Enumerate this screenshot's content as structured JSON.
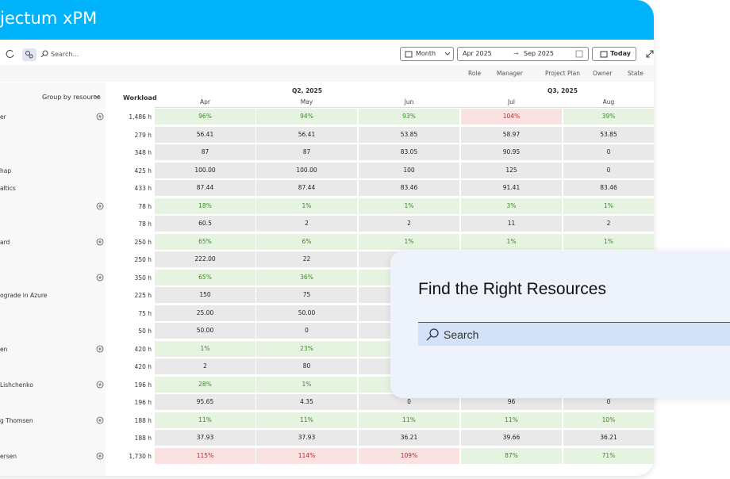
{
  "header": {
    "title": "jectum xPM"
  },
  "toolbar": {
    "search": "Search...",
    "period": "Month",
    "date_from": "Apr 2025",
    "date_arrow": "→",
    "date_to": "Sep 2025",
    "today": "Today"
  },
  "filters": [
    "Role",
    "Manager",
    "Project Plan",
    "Owner",
    "State"
  ],
  "grid": {
    "group_by": "Group by resource",
    "workload": "Workload",
    "quarters": [
      "Q2, 2025",
      "Q3, 2025"
    ],
    "months": [
      "Apr",
      "May",
      "Jun",
      "Jul",
      "Aug"
    ],
    "rows": [
      {
        "name": "er",
        "expandable": true,
        "workload": "1,486 h",
        "cells": [
          "96%",
          "94%",
          "93%",
          "104%",
          "39%"
        ]
      },
      {
        "workload": "279 h",
        "cells": [
          "56.41",
          "56.41",
          "53.85",
          "58.97",
          "53.85"
        ]
      },
      {
        "workload": "348 h",
        "cells": [
          "87",
          "87",
          "83.05",
          "90.95",
          "0"
        ]
      },
      {
        "name": "hap",
        "workload": "425 h",
        "cells": [
          "100.00",
          "100.00",
          "100",
          "125",
          "0"
        ]
      },
      {
        "name": "altics",
        "workload": "433 h",
        "cells": [
          "87.44",
          "87.44",
          "83.46",
          "91.41",
          "83.46"
        ]
      },
      {
        "expandable": true,
        "workload": "78 h",
        "cells": [
          "18%",
          "1%",
          "1%",
          "3%",
          "1%"
        ]
      },
      {
        "workload": "78 h",
        "cells": [
          "60.5",
          "2",
          "2",
          "11",
          "2"
        ]
      },
      {
        "name": "ard",
        "expandable": true,
        "workload": "250 h",
        "cells": [
          "65%",
          "6%",
          "1%",
          "1%",
          "1%"
        ]
      },
      {
        "workload": "250 h",
        "cells": [
          "222.00",
          "22"
        ]
      },
      {
        "expandable": true,
        "workload": "350 h",
        "cells": [
          "65%",
          "36%"
        ]
      },
      {
        "name": "ograde in Azure",
        "workload": "225 h",
        "cells": [
          "150",
          "75"
        ]
      },
      {
        "workload": "75 h",
        "cells": [
          "25.00",
          "50.00"
        ]
      },
      {
        "workload": "50 h",
        "cells": [
          "50.00",
          "0"
        ]
      },
      {
        "name": "en",
        "expandable": true,
        "workload": "420 h",
        "cells": [
          "1%",
          "23%"
        ]
      },
      {
        "workload": "420 h",
        "cells": [
          "2",
          "80"
        ]
      },
      {
        "name": "Lishchenko",
        "expandable": true,
        "workload": "196 h",
        "cells": [
          "28%",
          "1%"
        ]
      },
      {
        "workload": "196 h",
        "cells": [
          "95.65",
          "4.35",
          "0",
          "96",
          "0"
        ]
      },
      {
        "name": "g Thomsen",
        "expandable": true,
        "workload": "188 h",
        "cells": [
          "11%",
          "11%",
          "11%",
          "11%",
          "10%"
        ]
      },
      {
        "workload": "188 h",
        "cells": [
          "37.93",
          "37.93",
          "36.21",
          "39.66",
          "36.21"
        ]
      },
      {
        "name": "ersen",
        "expandable": true,
        "workload": "1,730 h",
        "cells": [
          "115%",
          "114%",
          "109%",
          "87%",
          "71%"
        ]
      }
    ]
  },
  "card": {
    "title": "Find the Right Resources",
    "search": "Search"
  }
}
